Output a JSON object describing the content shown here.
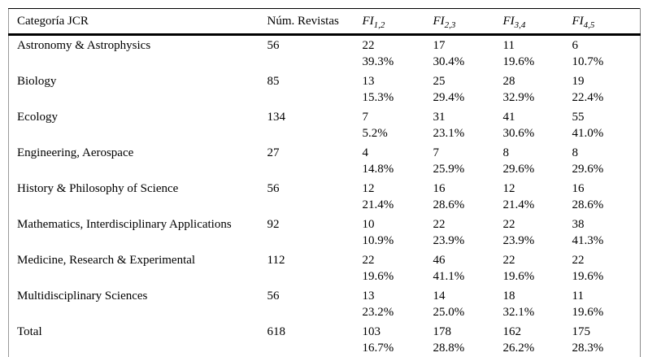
{
  "header": {
    "category": "Categoría JCR",
    "num": "Núm. Revistas",
    "fi_columns": [
      {
        "base": "FI",
        "sub": "1,2"
      },
      {
        "base": "FI",
        "sub": "2,3"
      },
      {
        "base": "FI",
        "sub": "3,4"
      },
      {
        "base": "FI",
        "sub": "4,5"
      }
    ]
  },
  "table": {
    "rows": [
      {
        "category": "Astronomy & Astrophysics",
        "num": "56",
        "fi": [
          {
            "count": "22",
            "pct": "39.3%"
          },
          {
            "count": "17",
            "pct": "30.4%"
          },
          {
            "count": "11",
            "pct": "19.6%"
          },
          {
            "count": "6",
            "pct": "10.7%"
          }
        ]
      },
      {
        "category": "Biology",
        "num": "85",
        "fi": [
          {
            "count": "13",
            "pct": "15.3%"
          },
          {
            "count": "25",
            "pct": "29.4%"
          },
          {
            "count": "28",
            "pct": "32.9%"
          },
          {
            "count": "19",
            "pct": "22.4%"
          }
        ]
      },
      {
        "category": "Ecology",
        "num": "134",
        "fi": [
          {
            "count": "7",
            "pct": "5.2%"
          },
          {
            "count": "31",
            "pct": "23.1%"
          },
          {
            "count": "41",
            "pct": "30.6%"
          },
          {
            "count": "55",
            "pct": "41.0%"
          }
        ]
      },
      {
        "category": "Engineering, Aerospace",
        "num": "27",
        "fi": [
          {
            "count": "4",
            "pct": "14.8%"
          },
          {
            "count": "7",
            "pct": "25.9%"
          },
          {
            "count": "8",
            "pct": "29.6%"
          },
          {
            "count": "8",
            "pct": "29.6%"
          }
        ]
      },
      {
        "category": "History & Philosophy of Science",
        "num": "56",
        "fi": [
          {
            "count": "12",
            "pct": "21.4%"
          },
          {
            "count": "16",
            "pct": "28.6%"
          },
          {
            "count": "12",
            "pct": "21.4%"
          },
          {
            "count": "16",
            "pct": "28.6%"
          }
        ]
      },
      {
        "category": "Mathematics, Interdisciplinary Applications",
        "num": "92",
        "fi": [
          {
            "count": "10",
            "pct": "10.9%"
          },
          {
            "count": "22",
            "pct": "23.9%"
          },
          {
            "count": "22",
            "pct": "23.9%"
          },
          {
            "count": "38",
            "pct": "41.3%"
          }
        ]
      },
      {
        "category": "Medicine, Research & Experimental",
        "num": "112",
        "fi": [
          {
            "count": "22",
            "pct": "19.6%"
          },
          {
            "count": "46",
            "pct": "41.1%"
          },
          {
            "count": "22",
            "pct": "19.6%"
          },
          {
            "count": "22",
            "pct": "19.6%"
          }
        ]
      },
      {
        "category": "Multidisciplinary Sciences",
        "num": "56",
        "fi": [
          {
            "count": "13",
            "pct": "23.2%"
          },
          {
            "count": "14",
            "pct": "25.0%"
          },
          {
            "count": "18",
            "pct": "32.1%"
          },
          {
            "count": "11",
            "pct": "19.6%"
          }
        ]
      },
      {
        "category": "Total",
        "num": "618",
        "fi": [
          {
            "count": "103",
            "pct": "16.7%"
          },
          {
            "count": "178",
            "pct": "28.8%"
          },
          {
            "count": "162",
            "pct": "26.2%"
          },
          {
            "count": "175",
            "pct": "28.3%"
          }
        ]
      }
    ]
  },
  "colors": {
    "text": "#000000",
    "rule": "#000000",
    "background": "#ffffff"
  }
}
